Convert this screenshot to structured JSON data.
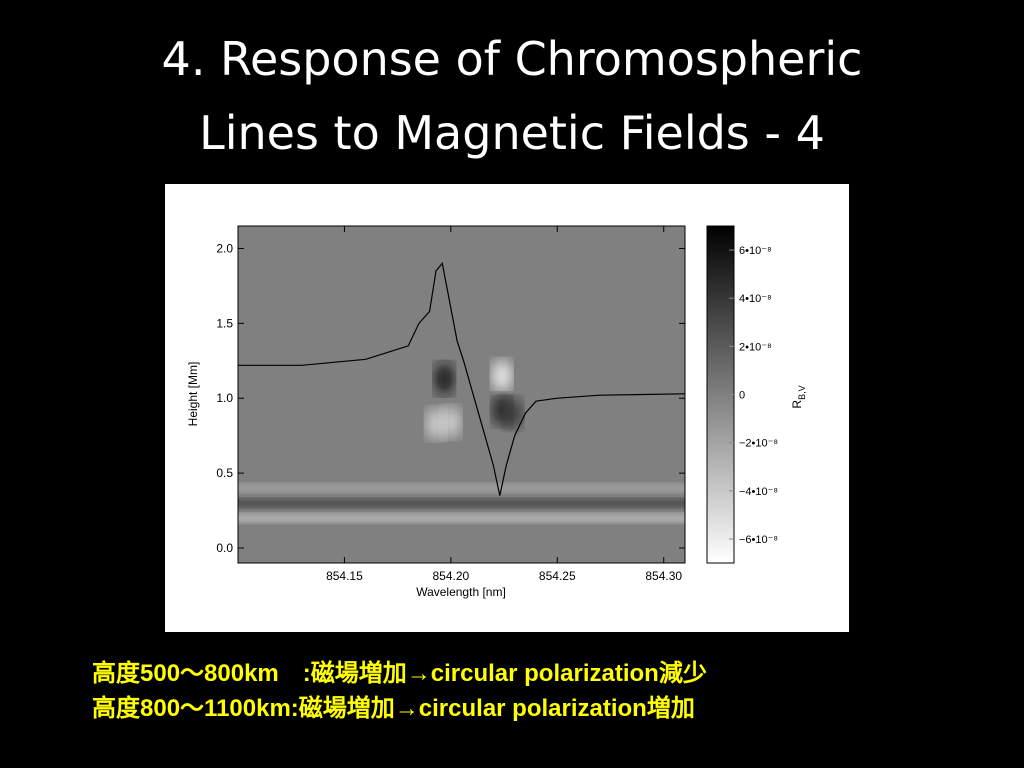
{
  "slide": {
    "title_line1": "4. Response of Chromospheric",
    "title_line2": "Lines to Magnetic Fields - 4",
    "caption_line1": "高度500～800km　:磁場増加→circular polarization減少",
    "caption_line2": "高度800～1100km:磁場増加→circular polarization増加"
  },
  "colors": {
    "background": "#000000",
    "title": "#ffffff",
    "caption": "#ffff00",
    "panel": "#ffffff",
    "map_neutral": "#a6a6a6"
  },
  "chart_data": {
    "type": "heatmap",
    "xlabel": "Wavelength [nm]",
    "ylabel": "Height [Mm]",
    "xlim": [
      854.1,
      854.31
    ],
    "ylim": [
      -0.1,
      2.15
    ],
    "xticks": [
      854.15,
      854.2,
      854.25,
      854.3
    ],
    "xtick_labels": [
      "854.15",
      "854.20",
      "854.25",
      "854.30"
    ],
    "yticks": [
      0.0,
      0.5,
      1.0,
      1.5,
      2.0
    ],
    "ytick_labels": [
      "0.0",
      "0.5",
      "1.0",
      "1.5",
      "2.0"
    ],
    "colorbar": {
      "label": "R_B,V",
      "label_main": "R",
      "label_sub": "B,V",
      "range": [
        -7e-08,
        7e-08
      ],
      "ticks": [
        6e-08,
        4e-08,
        2e-08,
        0,
        -2e-08,
        -4e-08,
        -6e-08
      ],
      "tick_labels": [
        "6•10⁻⁸",
        "4•10⁻⁸",
        "2•10⁻⁸",
        "0",
        "−2•10⁻⁸",
        "−4•10⁻⁸",
        "−6•10⁻⁸"
      ],
      "colormap": "gray_reversed (black = positive, white = negative)"
    },
    "features": [
      {
        "kind": "blob",
        "wavelength": 854.197,
        "height": 1.13,
        "value": 6e-08
      },
      {
        "kind": "blob",
        "wavelength": 854.193,
        "height": 0.83,
        "value": -4.5e-08
      },
      {
        "kind": "blob",
        "wavelength": 854.2,
        "height": 0.84,
        "value": -4.5e-08
      },
      {
        "kind": "blob",
        "wavelength": 854.224,
        "height": 1.15,
        "value": -6e-08
      },
      {
        "kind": "blob",
        "wavelength": 854.224,
        "height": 0.92,
        "value": 5e-08
      },
      {
        "kind": "blob",
        "wavelength": 854.229,
        "height": 0.9,
        "value": 4e-08
      },
      {
        "kind": "band",
        "height": 0.2,
        "value": -2.5e-08
      },
      {
        "kind": "band",
        "height": 0.3,
        "value": 2.5e-08
      },
      {
        "kind": "band",
        "height": 0.4,
        "value": -1.5e-08
      }
    ],
    "line_profile": {
      "name": "",
      "x": [
        854.1,
        854.13,
        854.16,
        854.18,
        854.185,
        854.19,
        854.193,
        854.196,
        854.2,
        854.203,
        854.206,
        854.21,
        854.215,
        854.22,
        854.223,
        854.226,
        854.23,
        854.235,
        854.24,
        854.25,
        854.27,
        854.31
      ],
      "y": [
        1.22,
        1.22,
        1.26,
        1.35,
        1.5,
        1.58,
        1.85,
        1.9,
        1.6,
        1.38,
        1.25,
        1.05,
        0.8,
        0.55,
        0.35,
        0.55,
        0.75,
        0.9,
        0.98,
        1.0,
        1.02,
        1.03
      ]
    }
  }
}
